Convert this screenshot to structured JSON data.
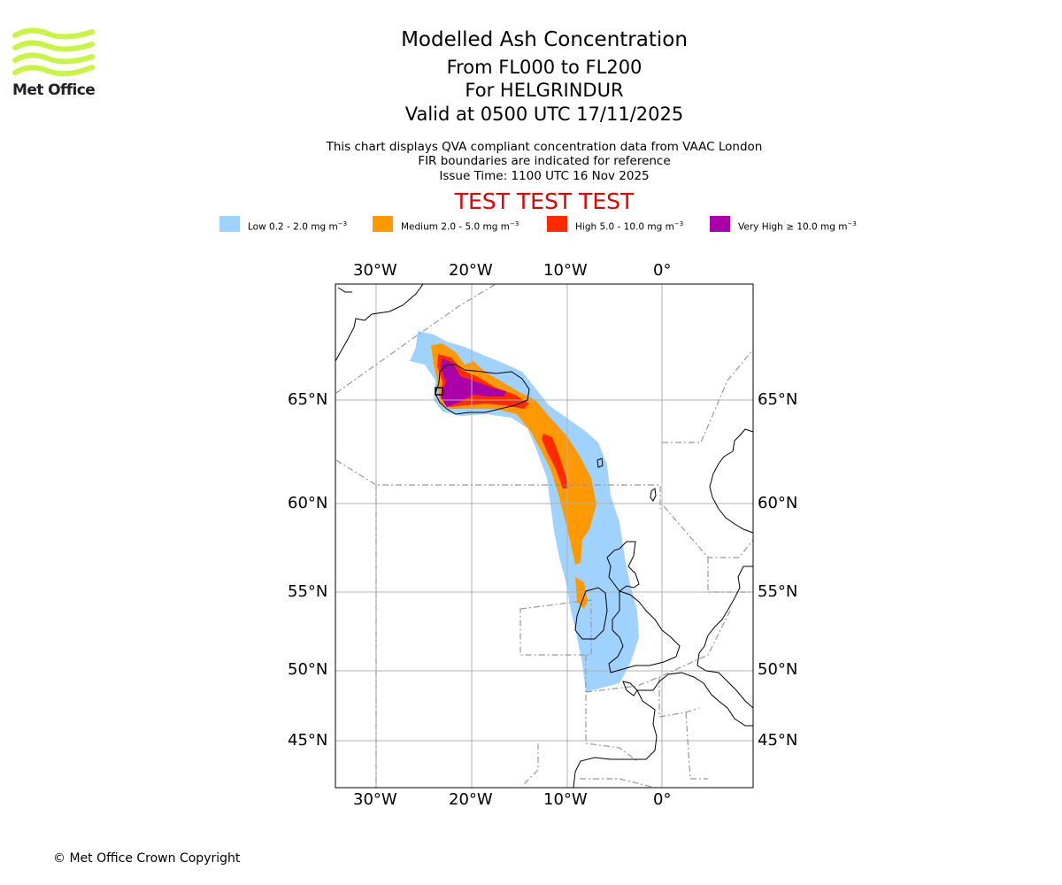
{
  "logo": {
    "text": "Met Office",
    "color": "#c8f542"
  },
  "title": {
    "main": "Modelled Ash Concentration",
    "levels": "From FL000 to FL200",
    "volcano": "For HELGRINDUR",
    "valid": "Valid at 0500 UTC 17/11/2025"
  },
  "info": {
    "line1": "This chart displays QVA compliant concentration data from VAAC London",
    "line2": "FIR boundaries are indicated for reference",
    "issue": "Issue Time: 1100 UTC 16 Nov 2025"
  },
  "test_banner": "TEST TEST TEST",
  "legend": [
    {
      "name": "Low",
      "range": "0.2 - 2.0 mg m",
      "exp": "−3",
      "color": "#a0d2ff"
    },
    {
      "name": "Medium",
      "range": "2.0 - 5.0 mg m",
      "exp": "−3",
      "color": "#ff9900"
    },
    {
      "name": "High",
      "range": "5.0 - 10.0 mg m",
      "exp": "−3",
      "color": "#ff2a00"
    },
    {
      "name": "Very High",
      "range": "≥  10.0 mg m",
      "exp": "−3",
      "color": "#aa00aa"
    }
  ],
  "axes": {
    "lon_labels": [
      "30°W",
      "20°W",
      "10°W",
      "0°"
    ],
    "lat_labels": [
      "65°N",
      "60°N",
      "55°N",
      "50°N",
      "45°N"
    ]
  },
  "copyright": "© Met Office Crown Copyright"
}
